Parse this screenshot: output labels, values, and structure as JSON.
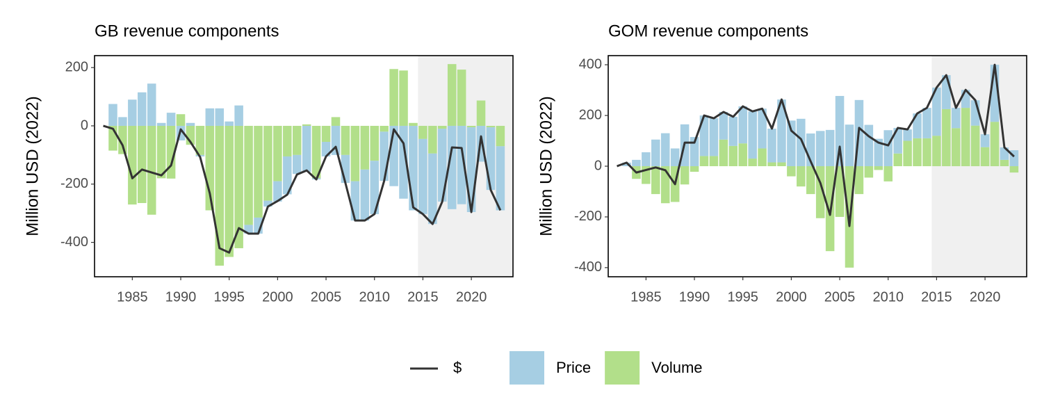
{
  "chart_data": [
    {
      "type": "bar",
      "title": "GB revenue components",
      "y_label": "Million USD (2022)",
      "x": [
        1982,
        1983,
        1984,
        1985,
        1986,
        1987,
        1988,
        1989,
        1990,
        1991,
        1992,
        1993,
        1994,
        1995,
        1996,
        1997,
        1998,
        1999,
        2000,
        2001,
        2002,
        2003,
        2004,
        2005,
        2006,
        2007,
        2008,
        2009,
        2010,
        2011,
        2012,
        2013,
        2014,
        2015,
        2016,
        2017,
        2018,
        2019,
        2020,
        2021,
        2022,
        2023
      ],
      "series": [
        {
          "name": "Price",
          "kind": "bar",
          "color": "#a6cee3",
          "values": [
            0,
            75,
            30,
            90,
            115,
            145,
            10,
            45,
            -50,
            10,
            -5,
            60,
            60,
            15,
            70,
            -30,
            -55,
            -20,
            -70,
            -130,
            -65,
            -158,
            -4,
            -50,
            -100,
            -96,
            -135,
            -175,
            -183,
            -169,
            -207,
            -250,
            -290,
            -258,
            -242,
            -250,
            -286,
            -269,
            -291,
            -123,
            -215,
            -220
          ]
        },
        {
          "name": "Volume",
          "kind": "bar",
          "color": "#b2df8a",
          "values": [
            0,
            -85,
            -97,
            -270,
            -265,
            -305,
            -180,
            -181,
            40,
            -65,
            -100,
            -290,
            -480,
            -450,
            -420,
            -340,
            -315,
            -257,
            -190,
            -105,
            -100,
            5,
            -180,
            -55,
            30,
            -100,
            -190,
            -150,
            -120,
            -20,
            195,
            190,
            10,
            -45,
            -95,
            -10,
            212,
            193,
            -5,
            87,
            -5,
            -70
          ]
        },
        {
          "name": "$",
          "kind": "line",
          "color": "#333333",
          "values": [
            0,
            -10,
            -67,
            -180,
            -150,
            -160,
            -170,
            -136,
            -12,
            -55,
            -107,
            -232,
            -420,
            -435,
            -351,
            -370,
            -370,
            -277,
            -258,
            -236,
            -167,
            -153,
            -184,
            -105,
            -72,
            -196,
            -325,
            -325,
            -303,
            -189,
            -12,
            -60,
            -280,
            -303,
            -337,
            -260,
            -74,
            -76,
            -296,
            -36,
            -220,
            -290
          ]
        }
      ],
      "xlim": [
        1981.1,
        2024.3
      ],
      "xticks": [
        1985,
        1990,
        1995,
        2000,
        2005,
        2010,
        2015,
        2020
      ],
      "ylim": [
        -518,
        241
      ],
      "yticks": [
        -400,
        -200,
        0,
        200
      ],
      "shaded_from": 2014.5
    },
    {
      "type": "bar",
      "title": "GOM revenue components",
      "y_label": "Million USD (2022)",
      "x": [
        1982,
        1983,
        1984,
        1985,
        1986,
        1987,
        1988,
        1989,
        1990,
        1991,
        1992,
        1993,
        1994,
        1995,
        1996,
        1997,
        1998,
        1999,
        2000,
        2001,
        2002,
        2003,
        2004,
        2005,
        2006,
        2007,
        2008,
        2009,
        2010,
        2011,
        2012,
        2013,
        2014,
        2015,
        2016,
        2017,
        2018,
        2019,
        2020,
        2021,
        2022,
        2023
      ],
      "series": [
        {
          "name": "Price",
          "kind": "bar",
          "color": "#a6cee3",
          "values": [
            0,
            14,
            25,
            55,
            105,
            130,
            70,
            165,
            115,
            160,
            149,
            109,
            115,
            146,
            186,
            157,
            133,
            248,
            180,
            187,
            129,
            139,
            143,
            277,
            164,
            261,
            163,
            108,
            142,
            101,
            45,
            98,
            120,
            190,
            134,
            80,
            71,
            100,
            51,
            225,
            49,
            63
          ]
        },
        {
          "name": "Volume",
          "kind": "bar",
          "color": "#b2df8a",
          "values": [
            0,
            0,
            -50,
            -70,
            -110,
            -146,
            -141,
            -72,
            -22,
            40,
            40,
            105,
            80,
            90,
            30,
            70,
            15,
            15,
            -40,
            -80,
            -110,
            -205,
            -335,
            -200,
            -400,
            -110,
            -45,
            -15,
            -60,
            50,
            100,
            110,
            110,
            120,
            225,
            150,
            230,
            160,
            75,
            175,
            25,
            -25
          ]
        },
        {
          "name": "$",
          "kind": "line",
          "color": "#333333",
          "values": [
            0,
            14,
            -25,
            -15,
            -5,
            -16,
            -71,
            93,
            93,
            200,
            189,
            214,
            195,
            236,
            216,
            227,
            148,
            263,
            140,
            107,
            19,
            -66,
            -192,
            77,
            -236,
            151,
            118,
            93,
            82,
            151,
            145,
            208,
            230,
            310,
            359,
            230,
            301,
            260,
            126,
            400,
            74,
            38
          ]
        }
      ],
      "xlim": [
        1981.1,
        2024.3
      ],
      "xticks": [
        1985,
        1990,
        1995,
        2000,
        2005,
        2010,
        2015,
        2020
      ],
      "ylim": [
        -436,
        436
      ],
      "yticks": [
        -400,
        -200,
        0,
        200,
        400
      ],
      "shaded_from": 2014.5
    }
  ]
}
